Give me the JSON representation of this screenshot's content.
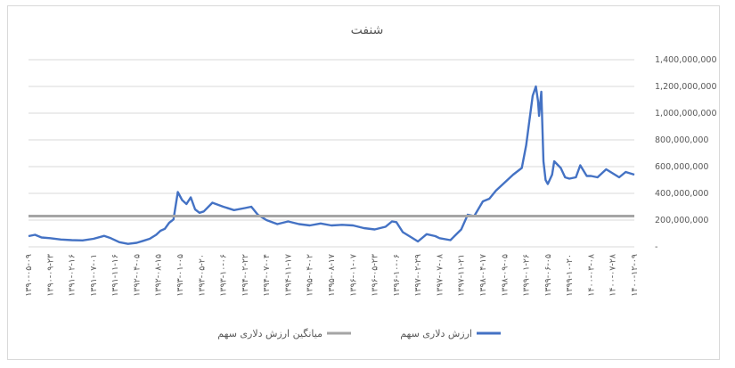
{
  "chart_data": {
    "type": "line",
    "title": "شنفت",
    "ylim": [
      0,
      1400000000
    ],
    "y_ticks": [
      "-",
      "200,000,000",
      "400,000,000",
      "600,000,000",
      "800,000,000",
      "1,000,000,000",
      "1,200,000,000",
      "1,400,000,000"
    ],
    "y_tick_values": [
      0,
      200000000,
      400000000,
      600000000,
      800000000,
      1000000000,
      1200000000,
      1400000000
    ],
    "grid": true,
    "legend_position": "bottom",
    "categories": [
      "۱۳۹۰-۰۵-۰۹",
      "۱۳۹۰-۰۹-۲۳",
      "۱۳۹۱-۰۲-۱۶",
      "۱۳۹۱-۰۷-۰۱",
      "۱۳۹۱-۱۱-۱۶",
      "۱۳۹۲-۰۴-۰۵",
      "۱۳۹۲-۰۸-۱۵",
      "۱۳۹۳-۰۱-۰۵",
      "۱۳۹۳-۰۵-۲۰",
      "۱۳۹۳-۱۰-۰۶",
      "۱۳۹۴-۰۲-۲۲",
      "۱۳۹۴-۰۷-۰۴",
      "۱۳۹۴-۱۱-۱۷",
      "۱۳۹۵-۰۴-۰۲",
      "۱۳۹۵-۰۸-۱۷",
      "۱۳۹۶-۰۱-۰۷",
      "۱۳۹۶-۰۵-۲۳",
      "۱۳۹۶-۱۰-۰۶",
      "۱۳۹۷-۰۲-۲۹",
      "۱۳۹۷-۰۷-۰۸",
      "۱۳۹۷-۱۱-۲۱",
      "۱۳۹۸-۰۴-۱۷",
      "۱۳۹۸-۰۹-۰۵",
      "۱۳۹۹-۰۱-۲۶",
      "۱۳۹۹-۰۶-۰۵",
      "۱۳۹۹-۱۰-۲۰",
      "۱۴۰۰-۰۳-۰۸",
      "۱۴۰۰-۰۷-۲۸",
      "۱۴۰۰-۱۲-۰۹"
    ],
    "series": [
      {
        "name": "ارزش دلاری سهم",
        "color": "#4472c4",
        "x": [
          0,
          0.3,
          0.6,
          1,
          1.5,
          2,
          2.5,
          3,
          3.5,
          3.8,
          4.2,
          4.6,
          5,
          5.3,
          5.6,
          5.9,
          6.1,
          6.3,
          6.5,
          6.7,
          6.9,
          7.1,
          7.3,
          7.5,
          7.7,
          7.9,
          8.1,
          8.5,
          9,
          9.5,
          10,
          10.3,
          10.6,
          11,
          11.5,
          12,
          12.5,
          13,
          13.5,
          14,
          14.5,
          15,
          15.5,
          16,
          16.5,
          16.8,
          17,
          17.3,
          17.7,
          18,
          18.4,
          18.8,
          19,
          19.5,
          20,
          20.3,
          20.6,
          21,
          21.3,
          21.6,
          22,
          22.4,
          22.8,
          23,
          23.3,
          23.45,
          23.55,
          23.6,
          23.7,
          23.8,
          23.9,
          24,
          24.2,
          24.3,
          24.6,
          24.8,
          25,
          25.3,
          25.5,
          25.8,
          26,
          26.3,
          26.7,
          27,
          27.3,
          27.6,
          28
        ],
        "values": [
          80,
          90,
          70,
          65,
          55,
          50,
          48,
          60,
          82,
          65,
          35,
          22,
          30,
          45,
          60,
          90,
          120,
          135,
          180,
          205,
          410,
          350,
          320,
          370,
          280,
          255,
          265,
          330,
          300,
          275,
          290,
          300,
          240,
          200,
          170,
          190,
          170,
          160,
          175,
          160,
          165,
          160,
          140,
          130,
          150,
          190,
          185,
          110,
          70,
          40,
          95,
          80,
          65,
          50,
          130,
          240,
          230,
          340,
          360,
          420,
          480,
          540,
          590,
          760,
          1130,
          1200,
          1090,
          980,
          1160,
          640,
          500,
          470,
          540,
          640,
          590,
          520,
          510,
          520,
          610,
          530,
          530,
          520,
          580,
          550,
          520,
          560,
          540
        ]
      },
      {
        "name": "میانگین ارزش دلاری سهم",
        "color": "#a5a5a5",
        "value": 230000000
      }
    ]
  }
}
